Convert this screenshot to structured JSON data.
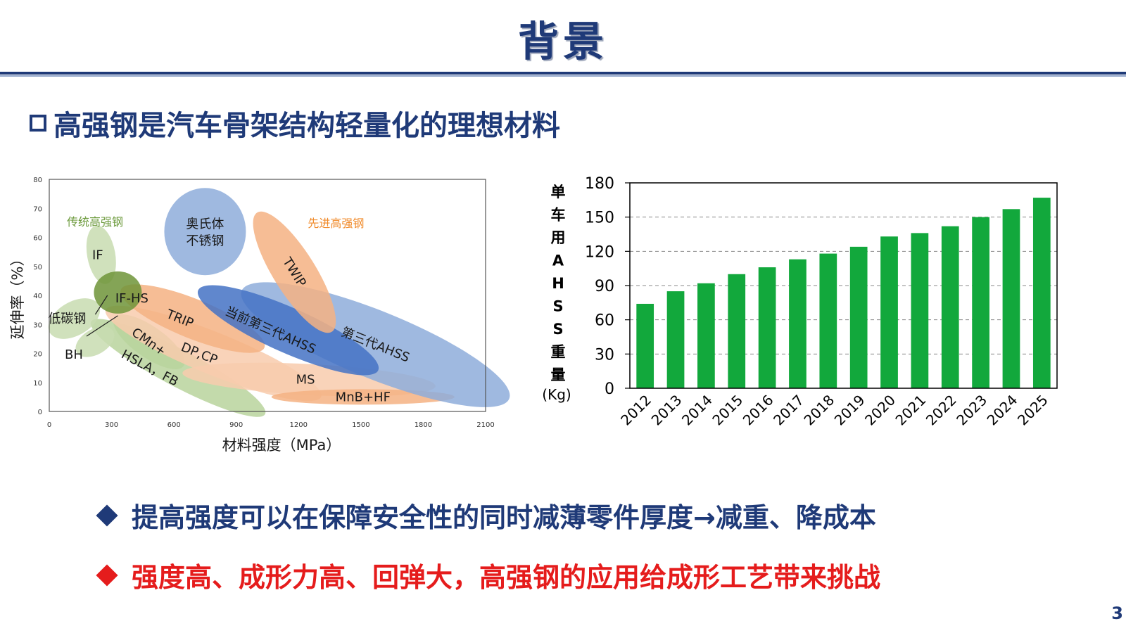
{
  "slide": {
    "title": "背景",
    "heading": "高强钢是汽车骨架结构轻量化的理想材料",
    "page_number": "3"
  },
  "bullets": [
    {
      "text": "提高强度可以在保障安全性的同时减薄零件厚度→减重、降成本",
      "color": "#1f3a78"
    },
    {
      "text": "强度高、成形力高、回弹大，高强钢的应用给成形工艺带来挑战",
      "color": "#e51c1c"
    }
  ],
  "chart_data": [
    {
      "type": "scatter",
      "xlabel": "材料强度（MPa）",
      "ylabel": "延伸率（%）",
      "xlim": [
        0,
        2100
      ],
      "ylim": [
        0,
        80
      ],
      "x_ticks": [
        "0",
        "300",
        "600",
        "900",
        "1200",
        "1500",
        "1800",
        "2100"
      ],
      "y_ticks": [
        "0",
        "10",
        "20",
        "30",
        "40",
        "50",
        "60",
        "70",
        "80"
      ],
      "group_labels": [
        {
          "text": "传统高强钢",
          "color": "#6c9a3c"
        },
        {
          "text": "先进高强钢",
          "color": "#f08a2a"
        }
      ],
      "regions": [
        {
          "label": "IF",
          "x": 250,
          "y": 54,
          "color": "#c8dcb0"
        },
        {
          "label": "IF-HS",
          "x": 330,
          "y": 41,
          "color": "#6e9438"
        },
        {
          "label": "低碳钢",
          "x": 120,
          "y": 32,
          "color": "#c8dcb0"
        },
        {
          "label": "BH",
          "x": 220,
          "y": 24,
          "color": "#c8dcb0"
        },
        {
          "label": "CMn+",
          "x": 480,
          "y": 24,
          "color": "#b8d39c"
        },
        {
          "label": "HSLA，FB",
          "x": 620,
          "y": 15,
          "color": "#b8d39c"
        },
        {
          "label": "奥氏体\n不锈钢",
          "x": 750,
          "y": 62,
          "color": "#8eaddb"
        },
        {
          "label": "TWIP",
          "x": 1180,
          "y": 48,
          "color": "#f4b183"
        },
        {
          "label": "TRIP",
          "x": 690,
          "y": 32,
          "color": "#f4b183"
        },
        {
          "label": "DP,CP",
          "x": 790,
          "y": 20,
          "color": "#f8cbad"
        },
        {
          "label": "当前第三代AHSS",
          "x": 1150,
          "y": 28,
          "color": "#4472c4"
        },
        {
          "label": "第三代AHSS",
          "x": 1570,
          "y": 23,
          "color": "#8eaddb"
        },
        {
          "label": "MS",
          "x": 1250,
          "y": 11,
          "color": "#f8cbad"
        },
        {
          "label": "MnB+HF",
          "x": 1510,
          "y": 5,
          "color": "#f4b183"
        }
      ]
    },
    {
      "type": "bar",
      "ylabel_chars": [
        "单",
        "车",
        "用",
        "A",
        "H",
        "S",
        "S",
        "重",
        "量"
      ],
      "ylabel_unit": "(Kg)",
      "categories": [
        "2012",
        "2013",
        "2014",
        "2015",
        "2016",
        "2017",
        "2018",
        "2019",
        "2020",
        "2021",
        "2022",
        "2023",
        "2024",
        "2025"
      ],
      "values": [
        74,
        85,
        92,
        100,
        106,
        113,
        118,
        124,
        133,
        136,
        142,
        150,
        157,
        167
      ],
      "ylim": [
        0,
        180
      ],
      "y_ticks": [
        "0",
        "30",
        "60",
        "90",
        "120",
        "150",
        "180"
      ],
      "grid": true,
      "bar_color": "#12a83c"
    }
  ]
}
